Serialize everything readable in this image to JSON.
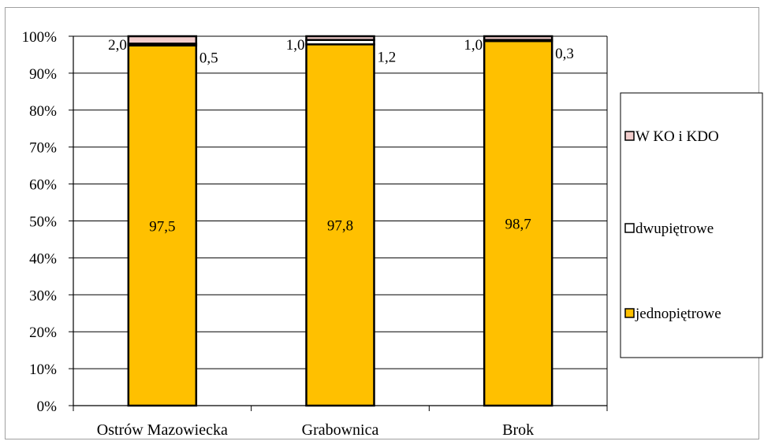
{
  "chart_data": {
    "type": "bar",
    "stacked": true,
    "percent": true,
    "categories": [
      "Ostrów Mazowiecka",
      "Grabownica",
      "Brok"
    ],
    "series": [
      {
        "name": "jednopiętrowe",
        "values": [
          97.5,
          97.8,
          98.7
        ],
        "labels": [
          "97,5",
          "97,8",
          "98,7"
        ],
        "color": "#FFC000"
      },
      {
        "name": "dwupiętrowe",
        "values": [
          0.5,
          1.2,
          0.3
        ],
        "labels": [
          "0,5",
          "1,2",
          "0,3"
        ],
        "color": "#FFFFFF"
      },
      {
        "name": "W KO i KDO",
        "values": [
          2.0,
          1.0,
          1.0
        ],
        "labels": [
          "2,0",
          "1,0",
          "1,0"
        ],
        "color": "#F2CDCC"
      }
    ],
    "ylim": [
      0,
      100
    ],
    "y_ticks": [
      "0%",
      "10%",
      "20%",
      "30%",
      "40%",
      "50%",
      "60%",
      "70%",
      "80%",
      "90%",
      "100%"
    ],
    "grid": true,
    "legend_position": "right",
    "legend_order": [
      "W KO i KDO",
      "dwupiętrowe",
      "jednopiętrowe"
    ],
    "title": "",
    "xlabel": "",
    "ylabel": ""
  }
}
